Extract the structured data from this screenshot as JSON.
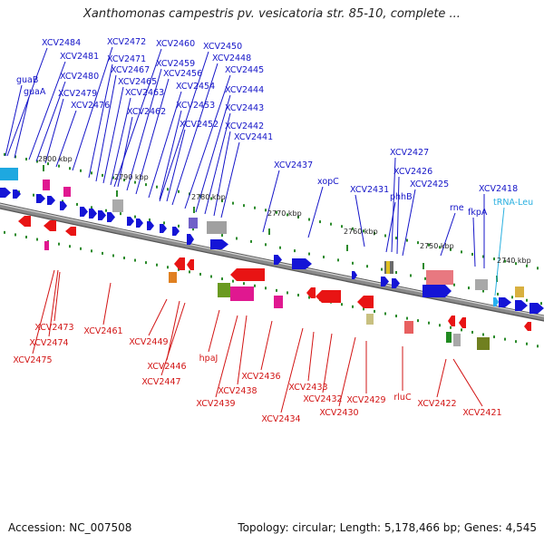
{
  "header": {
    "title": "Xanthomonas campestris pv. vesicatoria str. 85-10, complete ..."
  },
  "footer": {
    "accession": "Accession: NC_007508",
    "topology": "Topology: circular; Length: 5,178,466 bp; Genes: 4,545"
  },
  "colors": {
    "forward_label": "#1414c8",
    "reverse_label": "#d21414",
    "rna_label": "#2ab0e0",
    "backbone": "#8a8a8a",
    "tick": "#2a8a2a"
  },
  "scale_labels": [
    "2800 kbp",
    "2790 kbp",
    "2780 kbp",
    "2770 kbp",
    "2760 kbp",
    "2750 kbp",
    "2740 kbp"
  ],
  "forward_genes": [
    "XCV2484",
    "XCV2472",
    "XCV2460",
    "XCV2450",
    "XCV2481",
    "XCV2471",
    "XCV2448",
    "guaB",
    "XCV2480",
    "XCV2467",
    "XCV2459",
    "XCV2445",
    "XCV2456",
    "guaA",
    "XCV2465",
    "XCV2454",
    "XCV2444",
    "XCV2479",
    "XCV2463",
    "XCV2476",
    "XCV2453",
    "XCV2443",
    "XCV2462",
    "XCV2452",
    "XCV2442",
    "XCV2441",
    "XCV2427",
    "XCV2437",
    "XCV2426",
    "xopC",
    "XCV2425",
    "XCV2431",
    "phhB",
    "XCV2418",
    "rne",
    "fkpA"
  ],
  "reverse_genes": [
    "XCV2473",
    "XCV2474",
    "XCV2475",
    "XCV2461",
    "XCV2449",
    "XCV2446",
    "XCV2447",
    "hpaJ",
    "XCV2436",
    "XCV2438",
    "XCV2439",
    "XCV2434",
    "XCV2433",
    "XCV2432",
    "XCV2430",
    "XCV2429",
    "rluC",
    "XCV2422",
    "XCV2421"
  ],
  "rna_genes": [
    "tRNA-Leu"
  ]
}
